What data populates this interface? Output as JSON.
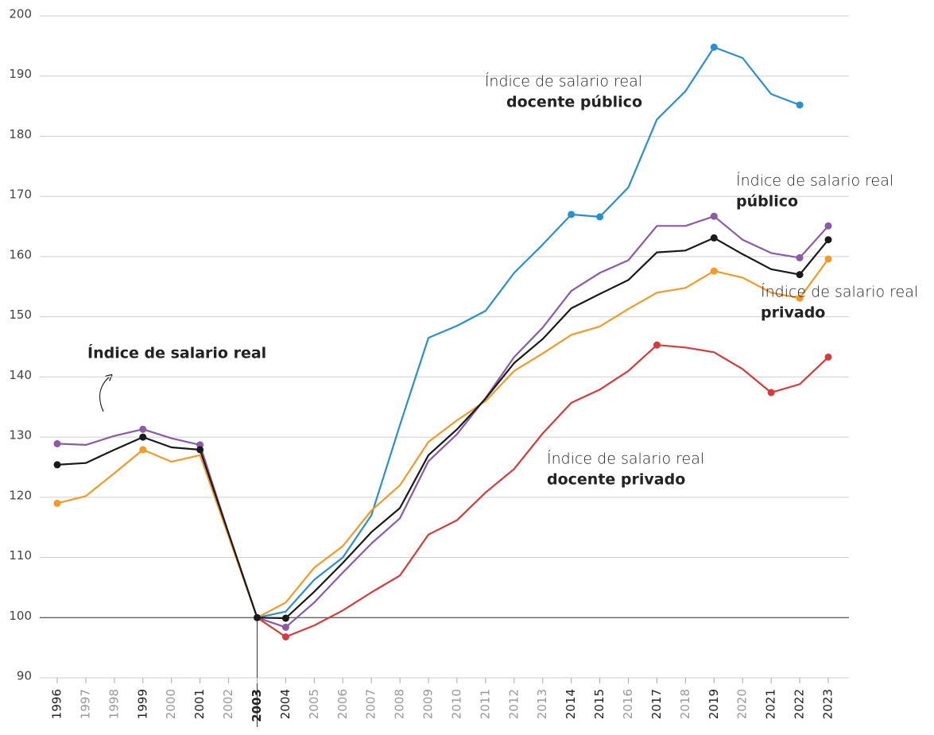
{
  "chart_data": {
    "type": "line",
    "categories": [
      "1996",
      "1997",
      "1998",
      "1999",
      "2000",
      "2001",
      "2002",
      "2003",
      "2004",
      "2005",
      "2006",
      "2007",
      "2008",
      "2009",
      "2010",
      "2011",
      "2012",
      "2013",
      "2014",
      "2015",
      "2016",
      "2017",
      "2018",
      "2019",
      "2020",
      "2021",
      "2022",
      "2023"
    ],
    "highlighted_categories": [
      "1996",
      "1999",
      "2001",
      "2003",
      "2004",
      "2014",
      "2015",
      "2017",
      "2019",
      "2021",
      "2022",
      "2023"
    ],
    "bold_category": "2003",
    "ylim": [
      90,
      200
    ],
    "yticks": [
      90,
      100,
      110,
      120,
      130,
      140,
      150,
      160,
      170,
      180,
      190,
      200
    ],
    "grid": true,
    "baseline": 100,
    "series": [
      {
        "name": "docente público",
        "color": "#2a8fd0",
        "markers": [
          "2014",
          "2015",
          "2019",
          "2022"
        ],
        "values": [
          null,
          null,
          null,
          null,
          null,
          null,
          null,
          100,
          101,
          106.3,
          110,
          117,
          132,
          146.5,
          148.5,
          151,
          157.3,
          162,
          167,
          166.6,
          171.5,
          182.8,
          187.5,
          194.8,
          193,
          187,
          185.2,
          null
        ]
      },
      {
        "name": "docente privado",
        "color": "#d63b3b",
        "markers": [
          "2004",
          "2017",
          "2021",
          "2023"
        ],
        "values": [
          null,
          null,
          null,
          null,
          null,
          null,
          null,
          100,
          96.8,
          98.7,
          101.2,
          104.2,
          107,
          113.8,
          116.2,
          120.8,
          124.7,
          130.6,
          135.7,
          137.9,
          141,
          145.3,
          144.9,
          144.1,
          141.3,
          137.4,
          138.8,
          143.3
        ]
      },
      {
        "name": "privado",
        "color": "#f39a26",
        "markers": [
          "1996",
          "1999",
          "2019",
          "2022",
          "2023"
        ],
        "values": [
          119,
          120.2,
          124,
          127.9,
          125.9,
          127,
          113.5,
          100,
          102.5,
          108.3,
          111.9,
          117.8,
          122,
          129.2,
          132.8,
          136,
          141,
          143.9,
          147,
          148.4,
          151.3,
          154,
          154.8,
          157.6,
          156.5,
          154,
          153.1,
          159.6
        ]
      },
      {
        "name": "público",
        "color": "#8a5ba6",
        "markers": [
          "1996",
          "1999",
          "2001",
          "2004",
          "2019",
          "2022",
          "2023"
        ],
        "values": [
          128.9,
          128.7,
          130.2,
          131.3,
          129.8,
          128.7,
          114,
          100,
          98.4,
          102.5,
          107.5,
          112.3,
          116.5,
          126,
          130.5,
          136.5,
          143.3,
          148.2,
          154.3,
          157.3,
          159.4,
          165.1,
          165.1,
          166.7,
          162.8,
          160.6,
          159.8,
          165.1
        ]
      },
      {
        "name": "Índice de salario real",
        "color": "#1a1a1a",
        "markers": [
          "1996",
          "1999",
          "2001",
          "2003",
          "2004",
          "2019",
          "2022",
          "2023"
        ],
        "values": [
          125.4,
          125.7,
          127.9,
          130,
          128.3,
          127.9,
          114,
          100,
          99.9,
          104.3,
          109.1,
          114.2,
          118.2,
          127,
          131.3,
          136.4,
          142.3,
          146.3,
          151.4,
          153.8,
          156.1,
          160.7,
          161,
          163.1,
          160.4,
          157.9,
          157,
          162.8
        ]
      }
    ],
    "annotations": [
      {
        "text": "Índice de salario real",
        "bold": "docente público"
      },
      {
        "text": "Índice de salario real",
        "bold": "público"
      },
      {
        "text": "Índice de salario real",
        "bold": "privado"
      },
      {
        "text": "Índice de salario real",
        "bold": "docente privado"
      },
      {
        "bold": "Índice de salario real"
      }
    ]
  }
}
